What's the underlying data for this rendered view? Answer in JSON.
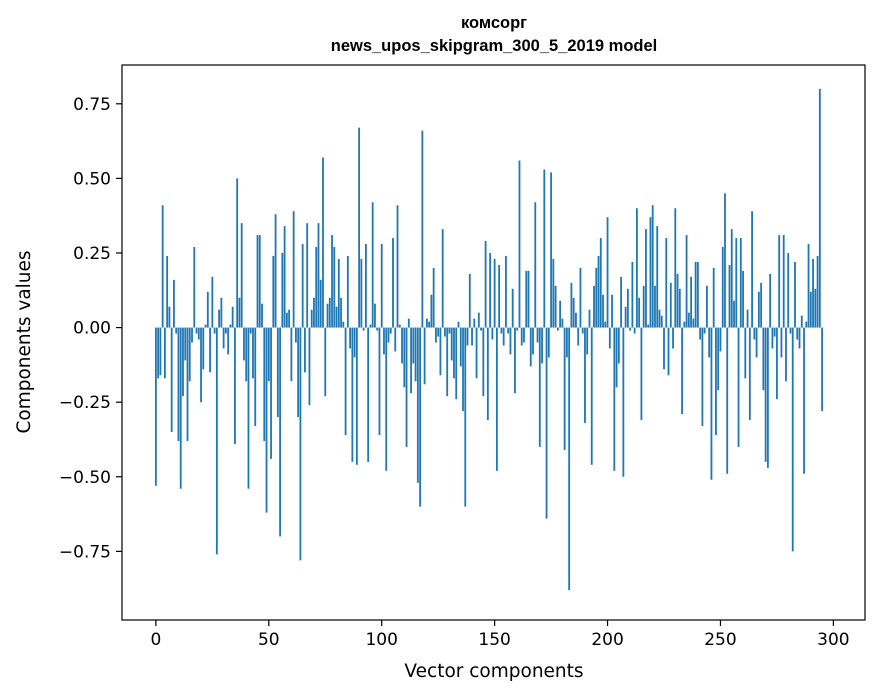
{
  "chart_data": {
    "type": "bar",
    "title": "комсорг",
    "subtitle": "news_upos_skipgram_300_5_2019 model",
    "xlabel": "Vector components",
    "ylabel": "Components values",
    "xlim": [
      -15,
      314
    ],
    "ylim": [
      -0.98,
      0.88
    ],
    "xticks": [
      0,
      50,
      100,
      150,
      200,
      250,
      300
    ],
    "xtick_labels": [
      "0",
      "50",
      "100",
      "150",
      "200",
      "250",
      "300"
    ],
    "yticks": [
      -0.75,
      -0.5,
      -0.25,
      0.0,
      0.25,
      0.5,
      0.75
    ],
    "ytick_labels": [
      "−0.75",
      "−0.50",
      "−0.25",
      "0.00",
      "0.25",
      "0.50",
      "0.75"
    ],
    "bar_color": "#1f77b4",
    "x": "indices 0..299",
    "values": [
      -0.53,
      -0.17,
      -0.16,
      0.41,
      -0.17,
      0.24,
      0.07,
      -0.35,
      0.16,
      -0.02,
      -0.38,
      -0.54,
      -0.23,
      -0.11,
      -0.38,
      -0.18,
      -0.05,
      0.27,
      -0.02,
      -0.04,
      -0.25,
      -0.14,
      0.01,
      0.12,
      -0.15,
      0.17,
      -0.02,
      -0.76,
      0.06,
      0.1,
      -0.07,
      -0.02,
      -0.09,
      0.01,
      0.07,
      -0.39,
      0.5,
      0.1,
      0.35,
      -0.11,
      -0.18,
      -0.54,
      -0.02,
      -0.17,
      -0.33,
      0.31,
      0.31,
      0.08,
      -0.38,
      -0.62,
      -0.18,
      -0.44,
      0.24,
      0.38,
      -0.3,
      -0.7,
      0.25,
      0.34,
      0.05,
      0.06,
      -0.18,
      0.39,
      -0.05,
      -0.3,
      -0.78,
      0.28,
      -0.15,
      0.35,
      -0.26,
      0.06,
      0.1,
      0.27,
      0.35,
      0.16,
      0.57,
      -0.23,
      0.08,
      0.1,
      0.31,
      0.27,
      0.07,
      0.23,
      0.1,
      0.02,
      -0.36,
      0.24,
      -0.07,
      -0.45,
      -0.1,
      -0.46,
      0.67,
      0.23,
      -0.01,
      0.28,
      -0.45,
      0.01,
      0.42,
      0.08,
      -0.01,
      -0.36,
      0.28,
      -0.09,
      -0.48,
      -0.05,
      -0.02,
      0.3,
      -0.08,
      0.41,
      0.01,
      -0.12,
      -0.2,
      -0.4,
      0.03,
      -0.22,
      -0.12,
      -0.18,
      -0.52,
      -0.6,
      0.66,
      -0.19,
      0.03,
      0.02,
      0.11,
      0.2,
      -0.05,
      -0.03,
      -0.16,
      0.33,
      -0.03,
      -0.23,
      -0.02,
      -0.11,
      -0.17,
      -0.24,
      0.02,
      -0.13,
      -0.28,
      -0.6,
      -0.06,
      0.18,
      -0.06,
      0.03,
      -0.17,
      0.05,
      -0.01,
      -0.23,
      0.29,
      -0.31,
      0.25,
      -0.04,
      0.23,
      -0.48,
      0.21,
      -0.02,
      -0.06,
      0.24,
      -0.02,
      -0.09,
      0.13,
      -0.22,
      -0.01,
      0.56,
      -0.06,
      -0.05,
      0.19,
      0.19,
      -0.13,
      -0.09,
      0.42,
      -0.05,
      -0.4,
      -0.12,
      0.53,
      -0.64,
      -0.1,
      0.52,
      0.23,
      0.14,
      -0.01,
      0.09,
      0.03,
      -0.41,
      -0.1,
      -0.88,
      0.15,
      0.1,
      0.05,
      -0.06,
      0.2,
      -0.02,
      -0.32,
      -0.09,
      0.06,
      -0.46,
      0.14,
      0.2,
      0.24,
      0.3,
      0.11,
      0.02,
      0.37,
      -0.07,
      0.11,
      -0.48,
      -0.2,
      -0.12,
      0.17,
      -0.5,
      0.07,
      0.13,
      -0.01,
      0.22,
      -0.02,
      0.4,
      0.1,
      -0.31,
      0.14,
      0.33,
      0.01,
      0.37,
      0.41,
      0.14,
      0.34,
      0.06,
      0.04,
      -0.14,
      0.3,
      -0.16,
      0.15,
      -0.07,
      0.4,
      0.18,
      0.13,
      -0.29,
      0.02,
      0.31,
      0.05,
      0.17,
      0.03,
      0.22,
      0.22,
      -0.04,
      -0.33,
      -0.02,
      0.14,
      -0.1,
      -0.51,
      0.2,
      -0.36,
      -0.21,
      -0.08,
      0.27,
      0.45,
      -0.49,
      0.21,
      0.33,
      0.09,
      0.3,
      -0.4,
      0.3,
      0.19,
      -0.17,
      0.06,
      -0.31,
      0.39,
      -0.04,
      -0.1,
      0.12,
      0.15,
      -0.21,
      -0.45,
      -0.47,
      0.18,
      -0.07,
      -0.03,
      -0.24,
      0.31,
      -0.1,
      0.31,
      -0.18,
      0.25,
      -0.02,
      -0.75,
      0.22,
      -0.04,
      -0.07,
      0.04,
      -0.49,
      0.02,
      0.28,
      0.12,
      0.23,
      0.13,
      0.24,
      0.8,
      -0.28,
      0.0,
      0.0,
      0.0,
      0.0
    ]
  }
}
